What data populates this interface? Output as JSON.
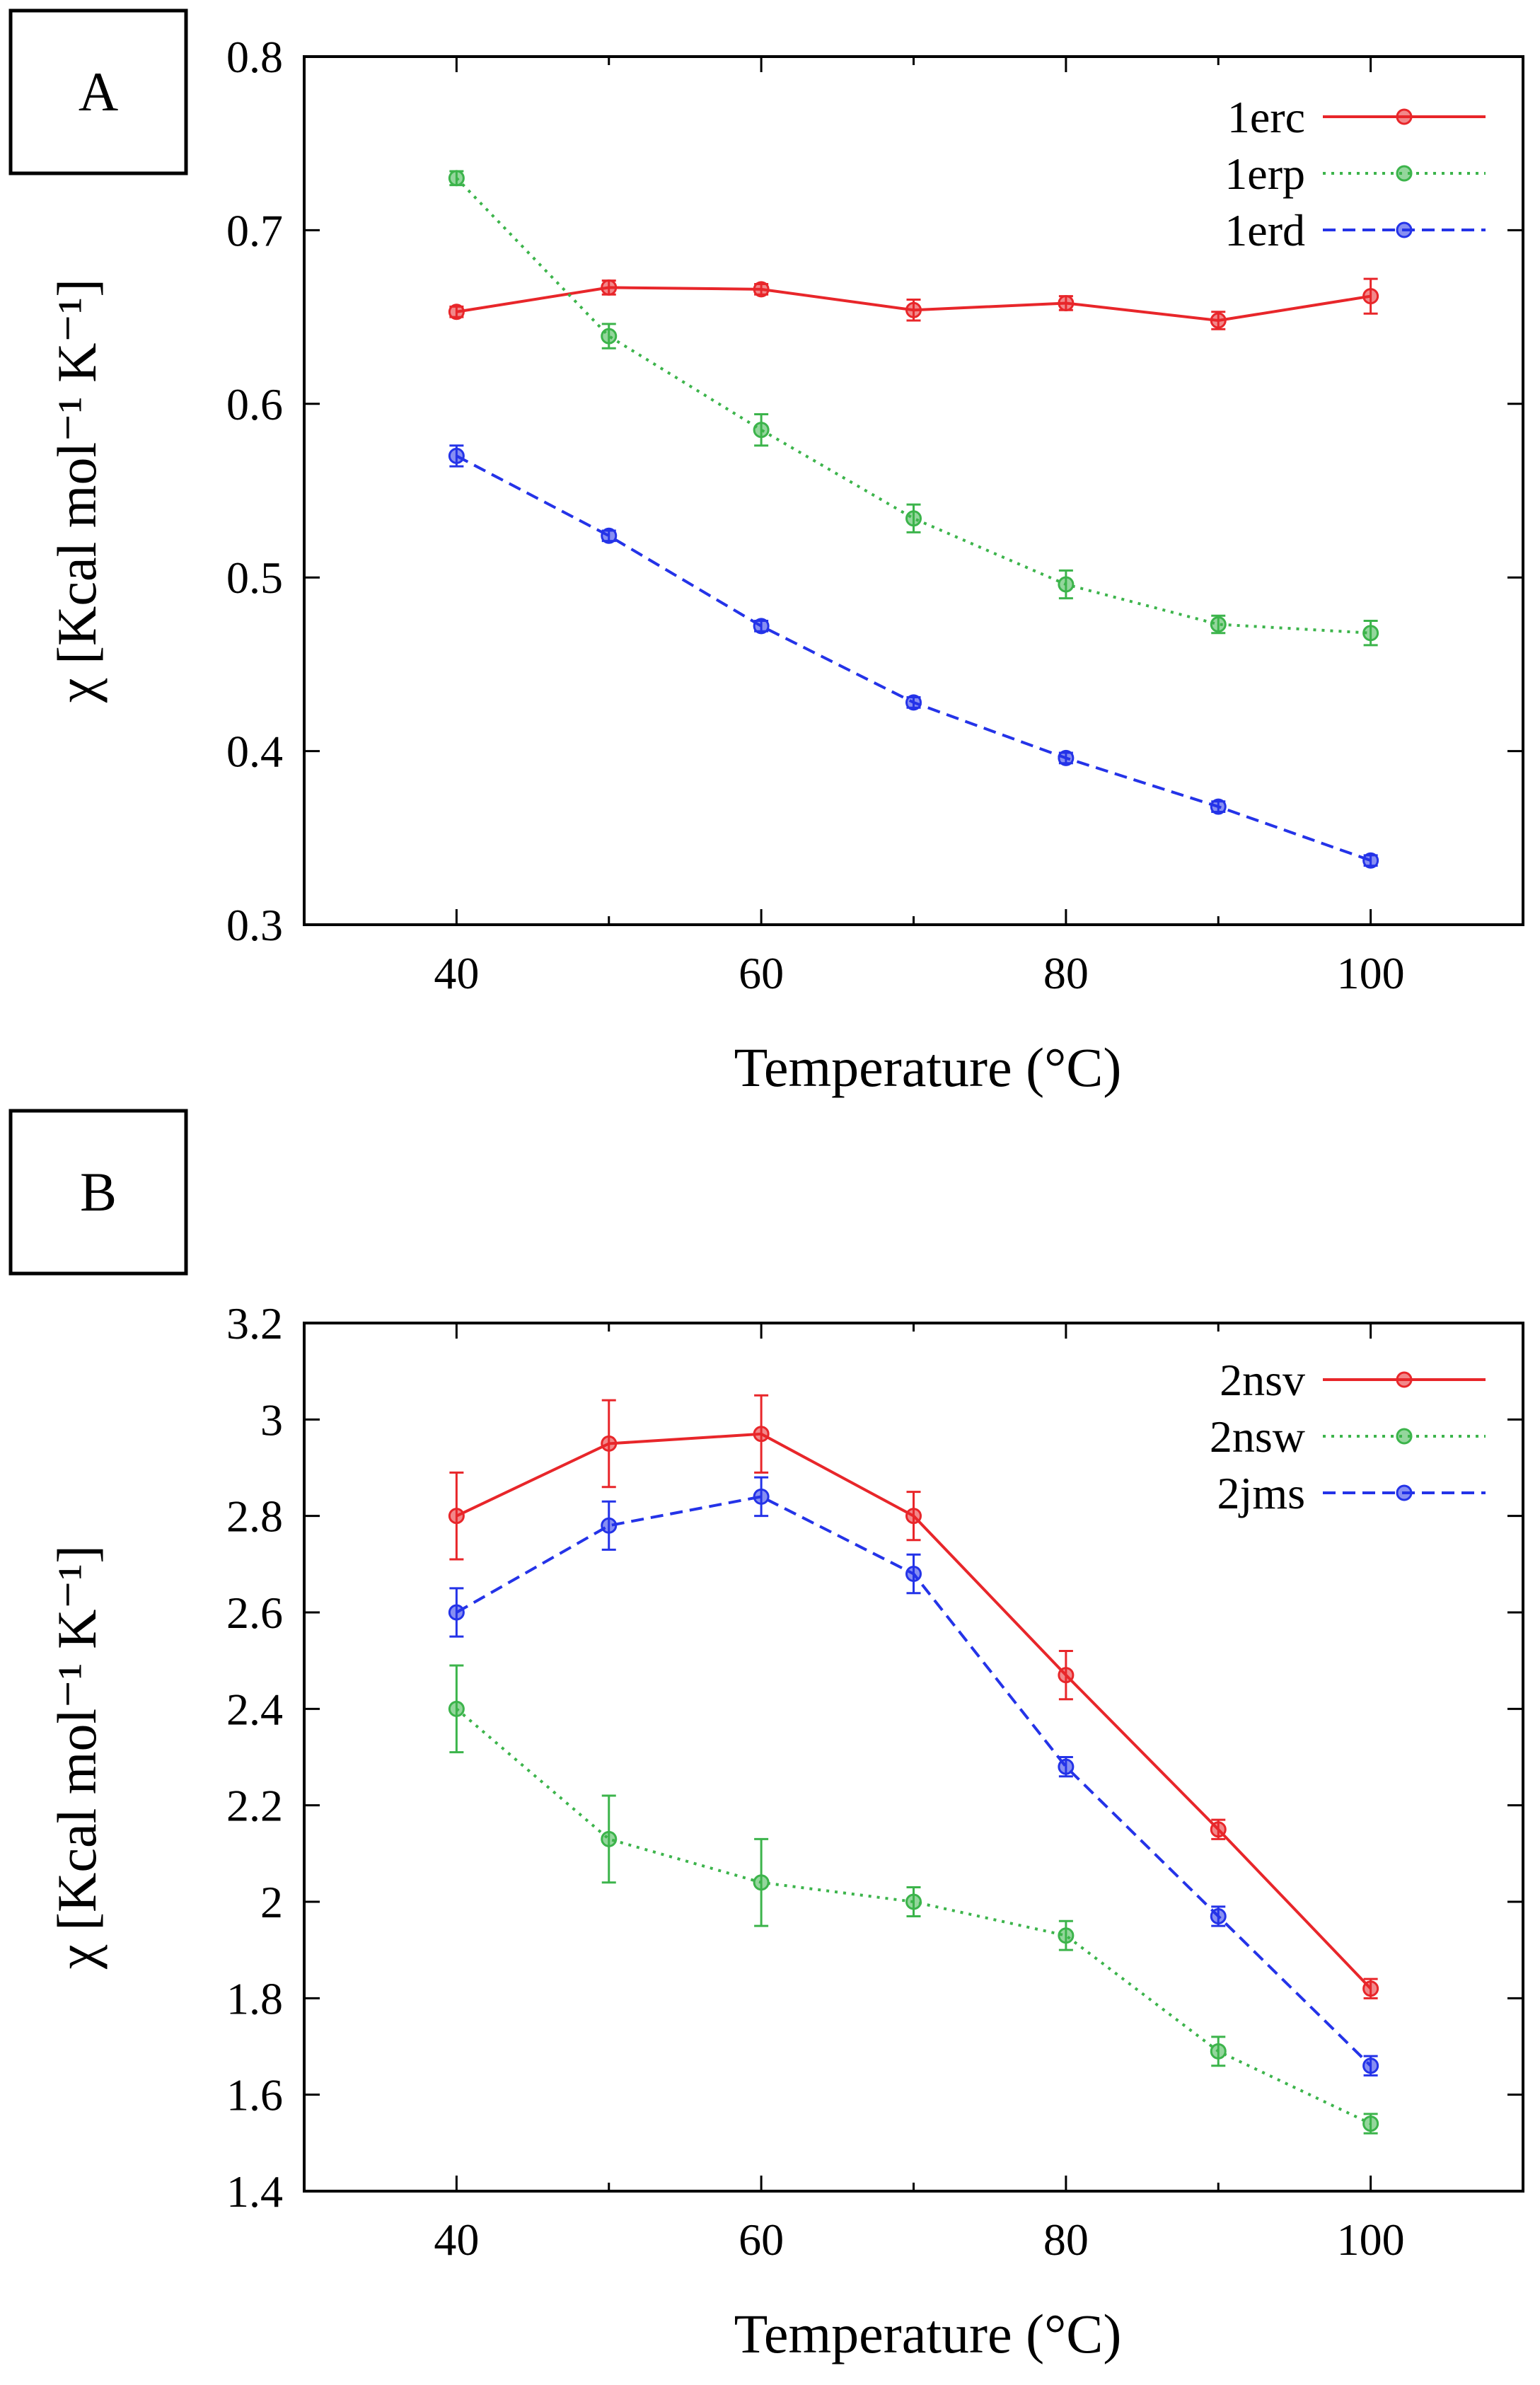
{
  "chart_data": [
    {
      "type": "line",
      "panel": "A",
      "title": "",
      "xlabel": "Temperature (°C)",
      "ylabel": "χ [Kcal mol⁻¹ K⁻¹]",
      "xlim": [
        30,
        110
      ],
      "ylim": [
        0.3,
        0.8
      ],
      "xticks": [
        40,
        60,
        80,
        100
      ],
      "xtick_labels": [
        "40",
        "60",
        "80",
        "100"
      ],
      "yticks": [
        0.3,
        0.4,
        0.5,
        0.6,
        0.7,
        0.8
      ],
      "ytick_labels": [
        "0.3",
        "0.4",
        "0.5",
        "0.6",
        "0.7",
        "0.8"
      ],
      "legend_position": "top-right",
      "x": [
        40,
        50,
        60,
        70,
        80,
        90,
        100
      ],
      "series": [
        {
          "name": "1erc",
          "color": "#e8262a",
          "style": "solid",
          "values": [
            0.653,
            0.667,
            0.666,
            0.654,
            0.658,
            0.648,
            0.662
          ],
          "errors": [
            0.003,
            0.004,
            0.003,
            0.006,
            0.004,
            0.005,
            0.01
          ]
        },
        {
          "name": "1erp",
          "color": "#3cb44b",
          "style": "dotted",
          "values": [
            0.73,
            0.639,
            0.585,
            0.534,
            0.496,
            0.473,
            0.468
          ],
          "errors": [
            0.004,
            0.007,
            0.009,
            0.008,
            0.008,
            0.005,
            0.007
          ]
        },
        {
          "name": "1erd",
          "color": "#2433e8",
          "style": "dashed",
          "values": [
            0.57,
            0.524,
            0.472,
            0.428,
            0.396,
            0.368,
            0.337
          ],
          "errors": [
            0.006,
            0.003,
            0.003,
            0.003,
            0.003,
            0.003,
            0.003
          ]
        }
      ]
    },
    {
      "type": "line",
      "panel": "B",
      "title": "",
      "xlabel": "Temperature (°C)",
      "ylabel": "χ [Kcal mol⁻¹ K⁻¹]",
      "xlim": [
        30,
        110
      ],
      "ylim": [
        1.4,
        3.2
      ],
      "xticks": [
        40,
        60,
        80,
        100
      ],
      "xtick_labels": [
        "40",
        "60",
        "80",
        "100"
      ],
      "yticks": [
        1.4,
        1.6,
        1.8,
        2.0,
        2.2,
        2.4,
        2.6,
        2.8,
        3.0,
        3.2
      ],
      "ytick_labels": [
        "1.4",
        "1.6",
        "1.8",
        "2",
        "2.2",
        "2.4",
        "2.6",
        "2.8",
        "3",
        "3.2"
      ],
      "legend_position": "top-right",
      "x": [
        40,
        50,
        60,
        70,
        80,
        90,
        100
      ],
      "series": [
        {
          "name": "2nsv",
          "color": "#e8262a",
          "style": "solid",
          "values": [
            2.8,
            2.95,
            2.97,
            2.8,
            2.47,
            2.15,
            1.82
          ],
          "errors": [
            0.09,
            0.09,
            0.08,
            0.05,
            0.05,
            0.02,
            0.02
          ]
        },
        {
          "name": "2nsw",
          "color": "#3cb44b",
          "style": "dotted",
          "values": [
            2.4,
            2.13,
            2.04,
            2.0,
            1.93,
            1.69,
            1.54
          ],
          "errors": [
            0.09,
            0.09,
            0.09,
            0.03,
            0.03,
            0.03,
            0.02
          ]
        },
        {
          "name": "2jms",
          "color": "#2433e8",
          "style": "dashed",
          "values": [
            2.6,
            2.78,
            2.84,
            2.68,
            2.28,
            1.97,
            1.66
          ],
          "errors": [
            0.05,
            0.05,
            0.04,
            0.04,
            0.02,
            0.02,
            0.02
          ]
        }
      ]
    }
  ]
}
